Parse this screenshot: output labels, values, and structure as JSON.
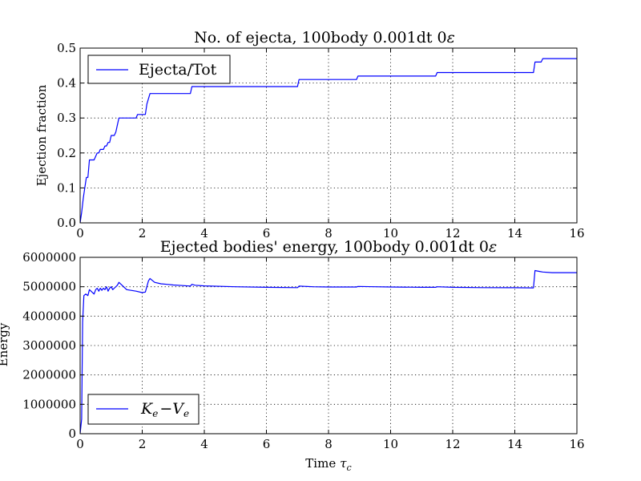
{
  "figure": {
    "xlabel_text": "Time",
    "xlabel_sub": "c"
  },
  "chart_data": [
    {
      "type": "line",
      "title": "No. of ejecta, 100body 0.001dt 0",
      "title_symbol": "ε",
      "xlabel": "",
      "ylabel": "Ejection fraction",
      "xlim": [
        0,
        16
      ],
      "ylim": [
        0,
        0.5
      ],
      "xticks": [
        "0",
        "2",
        "4",
        "6",
        "8",
        "10",
        "12",
        "14",
        "16"
      ],
      "yticks": [
        "0.0",
        "0.1",
        "0.2",
        "0.3",
        "0.4",
        "0.5"
      ],
      "grid": true,
      "legend_position": "upper-left",
      "series": [
        {
          "name": "Ejecta/Tot",
          "color": "#0000ff",
          "x": [
            0,
            0.05,
            0.1,
            0.15,
            0.2,
            0.25,
            0.3,
            0.35,
            0.4,
            0.45,
            0.55,
            0.6,
            0.65,
            0.75,
            0.8,
            0.85,
            0.9,
            0.95,
            1.0,
            1.05,
            1.1,
            1.15,
            1.2,
            1.25,
            1.3,
            1.8,
            1.85,
            2.1,
            2.15,
            2.25,
            2.3,
            3.55,
            3.6,
            7.0,
            7.05,
            8.9,
            8.95,
            11.45,
            11.5,
            14.6,
            14.65,
            14.85,
            14.9,
            16.0
          ],
          "y": [
            0,
            0.03,
            0.07,
            0.1,
            0.13,
            0.13,
            0.18,
            0.18,
            0.18,
            0.18,
            0.2,
            0.2,
            0.21,
            0.21,
            0.22,
            0.22,
            0.23,
            0.23,
            0.25,
            0.25,
            0.25,
            0.26,
            0.28,
            0.3,
            0.3,
            0.3,
            0.31,
            0.31,
            0.34,
            0.37,
            0.37,
            0.37,
            0.39,
            0.39,
            0.41,
            0.41,
            0.42,
            0.42,
            0.43,
            0.43,
            0.46,
            0.46,
            0.47,
            0.47
          ]
        }
      ]
    },
    {
      "type": "line",
      "title": "Ejected bodies' energy, 100body 0.001dt 0",
      "title_symbol": "ε",
      "xlabel": "Time τc",
      "ylabel": "Energy",
      "xlim": [
        0,
        16
      ],
      "ylim": [
        0,
        6000000
      ],
      "xticks": [
        "0",
        "2",
        "4",
        "6",
        "8",
        "10",
        "12",
        "14",
        "16"
      ],
      "yticks": [
        "0",
        "1000000",
        "2000000",
        "3000000",
        "4000000",
        "5000000",
        "6000000"
      ],
      "grid": true,
      "legend_position": "lower-left",
      "series": [
        {
          "name": "Ke − Ve",
          "name_parts": [
            "K",
            "e",
            "−V",
            "e"
          ],
          "color": "#0000ff",
          "x": [
            0,
            0.05,
            0.08,
            0.12,
            0.18,
            0.25,
            0.3,
            0.35,
            0.45,
            0.5,
            0.55,
            0.6,
            0.65,
            0.7,
            0.75,
            0.8,
            0.85,
            0.9,
            0.95,
            1.0,
            1.05,
            1.1,
            1.2,
            1.25,
            1.35,
            1.5,
            1.8,
            2.0,
            2.1,
            2.2,
            2.25,
            2.4,
            2.6,
            2.8,
            3.0,
            3.3,
            3.55,
            3.6,
            3.7,
            4.0,
            5.0,
            6.0,
            7.0,
            7.05,
            7.5,
            8.0,
            8.9,
            8.95,
            9.5,
            10.0,
            11.0,
            11.45,
            11.5,
            12.0,
            13.0,
            14.0,
            14.6,
            14.65,
            14.8,
            14.9,
            15.2,
            16.0
          ],
          "y": [
            0,
            500000,
            3800000,
            4700000,
            4750000,
            4700000,
            4900000,
            4850000,
            4750000,
            4900000,
            4950000,
            4850000,
            4950000,
            4880000,
            4950000,
            4900000,
            5000000,
            4850000,
            4950000,
            5000000,
            4900000,
            4950000,
            5050000,
            5150000,
            5050000,
            4900000,
            4850000,
            4800000,
            4820000,
            5200000,
            5280000,
            5150000,
            5100000,
            5080000,
            5060000,
            5040000,
            5020000,
            5080000,
            5050000,
            5030000,
            5000000,
            4980000,
            4970000,
            5020000,
            5000000,
            4990000,
            4990000,
            5010000,
            5000000,
            4990000,
            4980000,
            4980000,
            5000000,
            4980000,
            4970000,
            4965000,
            4960000,
            5550000,
            5520000,
            5500000,
            5480000,
            5480000
          ]
        }
      ]
    }
  ]
}
